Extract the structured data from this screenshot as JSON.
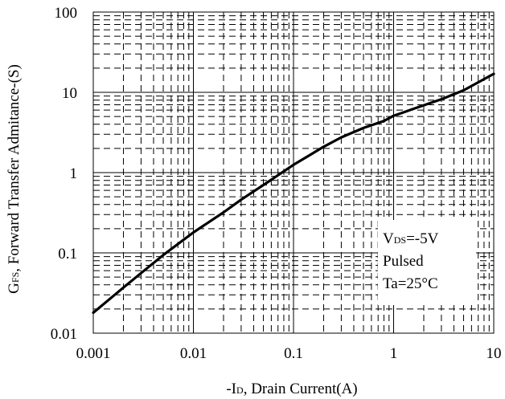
{
  "chart_data": {
    "type": "line",
    "title": "",
    "xscale": "log",
    "yscale": "log",
    "xlim": [
      0.001,
      10
    ],
    "ylim": [
      0.01,
      100
    ],
    "grid": true,
    "xlabel": {
      "prefix": "-I",
      "sub": "D",
      "suffix": ", Drain Current(A)"
    },
    "ylabel": {
      "prefix": "G",
      "sub": "FS",
      "suffix": ", Forward Transfer Admitance-(S)"
    },
    "xticks": [
      {
        "value": 0.001,
        "label": "0.001"
      },
      {
        "value": 0.01,
        "label": "0.01"
      },
      {
        "value": 0.1,
        "label": "0.1"
      },
      {
        "value": 1,
        "label": "1"
      },
      {
        "value": 10,
        "label": "10"
      }
    ],
    "yticks": [
      {
        "value": 0.01,
        "label": "0.01"
      },
      {
        "value": 0.1,
        "label": "0.1"
      },
      {
        "value": 1,
        "label": "1"
      },
      {
        "value": 10,
        "label": "10"
      },
      {
        "value": 100,
        "label": "100"
      }
    ],
    "annotation": {
      "line1": {
        "prefix": "V",
        "sub": "DS",
        "suffix": "=-5V"
      },
      "line2": "Pulsed",
      "line3": "Ta=25°C"
    },
    "series": [
      {
        "x": [
          0.001,
          0.002,
          0.003,
          0.005,
          0.01,
          0.02,
          0.03,
          0.05,
          0.1,
          0.2,
          0.3,
          0.5,
          0.8,
          1.0,
          2.0,
          3.0,
          5.0,
          10.0
        ],
        "y": [
          0.018,
          0.037,
          0.056,
          0.094,
          0.18,
          0.32,
          0.46,
          0.7,
          1.25,
          2.1,
          2.75,
          3.6,
          4.4,
          5.1,
          6.9,
          8.2,
          10.6,
          17.0
        ]
      }
    ]
  }
}
